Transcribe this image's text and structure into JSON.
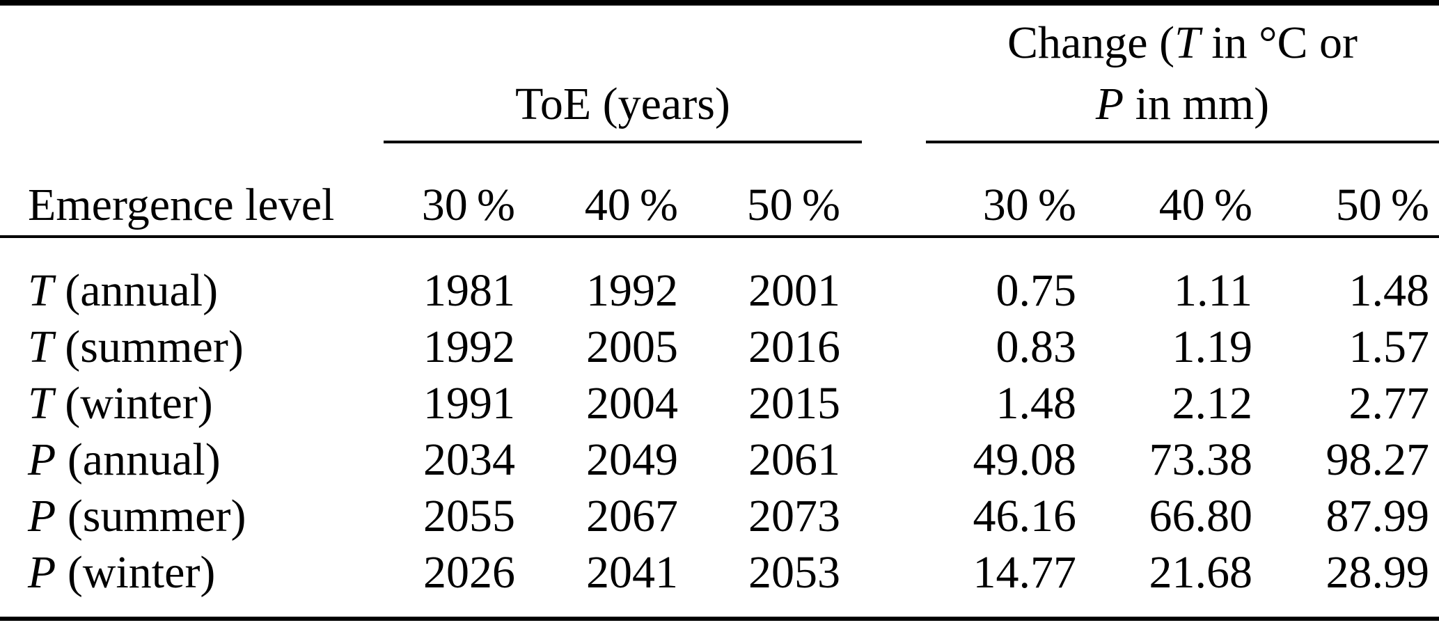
{
  "table": {
    "corner_label": "Emergence level",
    "groups": {
      "toe": {
        "title": "ToE (years)"
      },
      "change": {
        "pre": "Change (",
        "var1": "T",
        "mid": " in °C or",
        "var2": "P",
        "post": " in mm)"
      }
    },
    "subheaders": [
      "30 %",
      "40 %",
      "50 %",
      "30 %",
      "40 %",
      "50 %"
    ],
    "rows": [
      {
        "symbol": "T",
        "suffix": " (annual)",
        "values": [
          "1981",
          "1992",
          "2001",
          "0.75",
          "1.11",
          "1.48"
        ]
      },
      {
        "symbol": "T",
        "suffix": " (summer)",
        "values": [
          "1992",
          "2005",
          "2016",
          "0.83",
          "1.19",
          "1.57"
        ]
      },
      {
        "symbol": "T",
        "suffix": " (winter)",
        "values": [
          "1991",
          "2004",
          "2015",
          "1.48",
          "2.12",
          "2.77"
        ]
      },
      {
        "symbol": "P",
        "suffix": " (annual)",
        "values": [
          "2034",
          "2049",
          "2061",
          "49.08",
          "73.38",
          "98.27"
        ]
      },
      {
        "symbol": "P",
        "suffix": " (summer)",
        "values": [
          "2055",
          "2067",
          "2073",
          "46.16",
          "66.80",
          "87.99"
        ]
      },
      {
        "symbol": "P",
        "suffix": " (winter)",
        "values": [
          "2026",
          "2041",
          "2053",
          "14.77",
          "21.68",
          "28.99"
        ]
      }
    ]
  },
  "colors": {
    "text": "#000000",
    "rule": "#000000",
    "background": "#ffffff"
  }
}
